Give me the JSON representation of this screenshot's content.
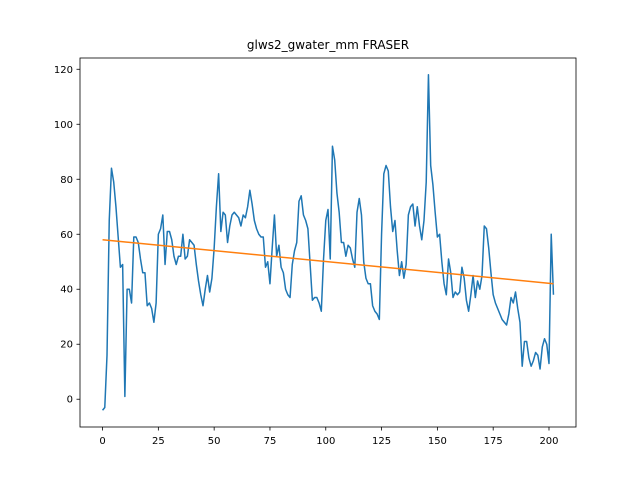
{
  "chart_data": {
    "type": "line",
    "title": "glws2_gwater_mm FRASER",
    "x": [
      0,
      1,
      2,
      3,
      4,
      5,
      6,
      7,
      8,
      9,
      10,
      11,
      12,
      13,
      14,
      15,
      16,
      17,
      18,
      19,
      20,
      21,
      22,
      23,
      24,
      25,
      26,
      27,
      28,
      29,
      30,
      31,
      32,
      33,
      34,
      35,
      36,
      37,
      38,
      39,
      40,
      41,
      42,
      43,
      44,
      45,
      46,
      47,
      48,
      49,
      50,
      51,
      52,
      53,
      54,
      55,
      56,
      57,
      58,
      59,
      60,
      61,
      62,
      63,
      64,
      65,
      66,
      67,
      68,
      69,
      70,
      71,
      72,
      73,
      74,
      75,
      76,
      77,
      78,
      79,
      80,
      81,
      82,
      83,
      84,
      85,
      86,
      87,
      88,
      89,
      90,
      91,
      92,
      93,
      94,
      95,
      96,
      97,
      98,
      99,
      100,
      101,
      102,
      103,
      104,
      105,
      106,
      107,
      108,
      109,
      110,
      111,
      112,
      113,
      114,
      115,
      116,
      117,
      118,
      119,
      120,
      121,
      122,
      123,
      124,
      125,
      126,
      127,
      128,
      129,
      130,
      131,
      132,
      133,
      134,
      135,
      136,
      137,
      138,
      139,
      140,
      141,
      142,
      143,
      144,
      145,
      146,
      147,
      148,
      149,
      150,
      151,
      152,
      153,
      154,
      155,
      156,
      157,
      158,
      159,
      160,
      161,
      162,
      163,
      164,
      165,
      166,
      167,
      168,
      169,
      170,
      171,
      172,
      173,
      174,
      175,
      176,
      177,
      178,
      179,
      180,
      181,
      182,
      183,
      184,
      185,
      186,
      187,
      188,
      189,
      190,
      191,
      192,
      193,
      194,
      195,
      196,
      197,
      198,
      199,
      200,
      201,
      202
    ],
    "series": [
      {
        "color": "#1f77b4",
        "values": [
          -4,
          -3,
          16,
          65,
          84,
          79,
          70,
          59,
          48,
          49,
          1,
          40,
          40,
          35,
          59,
          59,
          57,
          51,
          46,
          46,
          34,
          35,
          33,
          28,
          35,
          60,
          62,
          67,
          49,
          61,
          61,
          58,
          52,
          49,
          52,
          52,
          60,
          51,
          52,
          58,
          57,
          56,
          49,
          43,
          38,
          34,
          40,
          45,
          39,
          44,
          55,
          70,
          82,
          61,
          68,
          67,
          57,
          63,
          67,
          68,
          67,
          66,
          63,
          67,
          66,
          70,
          76,
          71,
          65,
          62,
          60,
          59,
          59,
          48,
          50,
          42,
          55,
          67,
          52,
          56,
          48,
          46,
          40,
          38,
          37,
          49,
          54,
          57,
          72,
          74,
          67,
          65,
          62,
          49,
          36,
          37,
          37,
          35,
          32,
          51,
          65,
          69,
          51,
          92,
          87,
          75,
          68,
          57,
          57,
          52,
          56,
          55,
          51,
          48,
          68,
          73,
          67,
          50,
          44,
          42,
          42,
          34,
          32,
          31,
          29,
          60,
          82,
          85,
          83,
          70,
          61,
          65,
          54,
          45,
          50,
          44,
          49,
          67,
          70,
          71,
          63,
          70,
          63,
          58,
          65,
          79,
          118,
          85,
          78,
          68,
          59,
          60,
          50,
          42,
          38,
          51,
          46,
          37,
          39,
          38,
          39,
          48,
          44,
          36,
          32,
          38,
          45,
          37,
          43,
          40,
          45,
          63,
          62,
          55,
          46,
          38,
          35,
          33,
          31,
          29,
          28,
          27,
          31,
          37,
          35,
          39,
          33,
          28,
          12,
          21,
          21,
          15,
          12,
          14,
          17,
          16,
          11,
          19,
          22,
          20,
          13,
          60,
          38
        ]
      },
      {
        "color": "#ff7f0e",
        "x": [
          0,
          202
        ],
        "values": [
          58,
          42
        ]
      }
    ],
    "xlim": [
      -10.1,
      212.1
    ],
    "ylim": [
      -10.1,
      124.1
    ],
    "xticks": [
      0,
      25,
      50,
      75,
      100,
      125,
      150,
      175,
      200
    ],
    "yticks": [
      0,
      20,
      40,
      60,
      80,
      100,
      120
    ]
  }
}
